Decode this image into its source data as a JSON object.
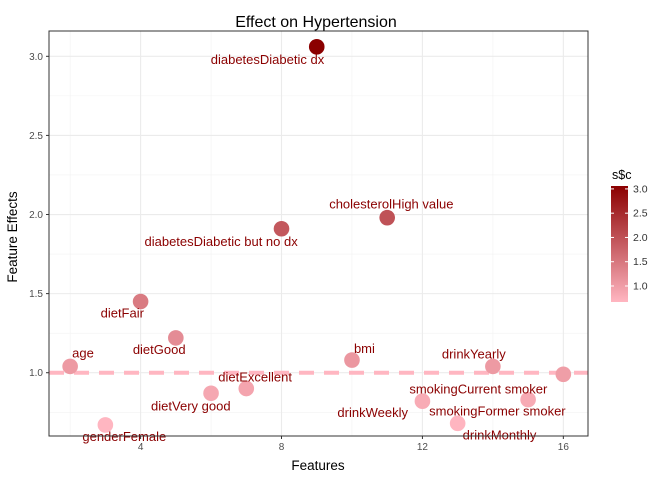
{
  "chart_data": {
    "type": "scatter",
    "title": "Effect on Hypertension",
    "xlabel": "Features",
    "ylabel": "Feature Effects",
    "xlim": [
      1.4,
      16.7
    ],
    "ylim": [
      0.6,
      3.16
    ],
    "xticks": [
      4,
      8,
      12,
      16
    ],
    "yticks": [
      1.0,
      1.5,
      2.0,
      2.5,
      3.0
    ],
    "ytick_labels": [
      "1.0",
      "1.5",
      "2.0",
      "2.5",
      "3.0"
    ],
    "grid": true,
    "reference_line": {
      "y": 1.0,
      "style": "dashed",
      "color": "#ffb6c1"
    },
    "color_scale": {
      "low": "#ffb6c1",
      "high": "#8b0000",
      "min": 0.67,
      "max": 3.06
    },
    "legend": {
      "title": "s$c",
      "ticks": [
        1.0,
        1.5,
        2.0,
        2.5,
        3.0
      ],
      "tick_labels": [
        "1.0",
        "1.5",
        "2.0",
        "2.5",
        "3.0"
      ],
      "placement": "right"
    },
    "points": [
      {
        "x": 2,
        "y": 1.04,
        "label": "age"
      },
      {
        "x": 3,
        "y": 0.67,
        "label": "genderFemale"
      },
      {
        "x": 4,
        "y": 1.45,
        "label": "dietFair"
      },
      {
        "x": 5,
        "y": 1.22,
        "label": "dietGood"
      },
      {
        "x": 6,
        "y": 0.87,
        "label": "dietVery good"
      },
      {
        "x": 7,
        "y": 0.9,
        "label": "dietExcellent"
      },
      {
        "x": 8,
        "y": 1.91,
        "label": "diabetesDiabetic but no dx"
      },
      {
        "x": 9,
        "y": 3.06,
        "label": "diabetesDiabetic dx"
      },
      {
        "x": 10,
        "y": 1.08,
        "label": "bmi"
      },
      {
        "x": 11,
        "y": 1.98,
        "label": "cholesterolHigh value"
      },
      {
        "x": 12,
        "y": 0.82,
        "label": "drinkWeekly"
      },
      {
        "x": 13,
        "y": 0.68,
        "label": "drinkMonthly"
      },
      {
        "x": 14,
        "y": 1.04,
        "label": "drinkYearly"
      },
      {
        "x": 15,
        "y": 0.83,
        "label": "smokingFormer smoker"
      },
      {
        "x": 16,
        "y": 0.99,
        "label": "smokingCurrent smoker"
      }
    ]
  }
}
